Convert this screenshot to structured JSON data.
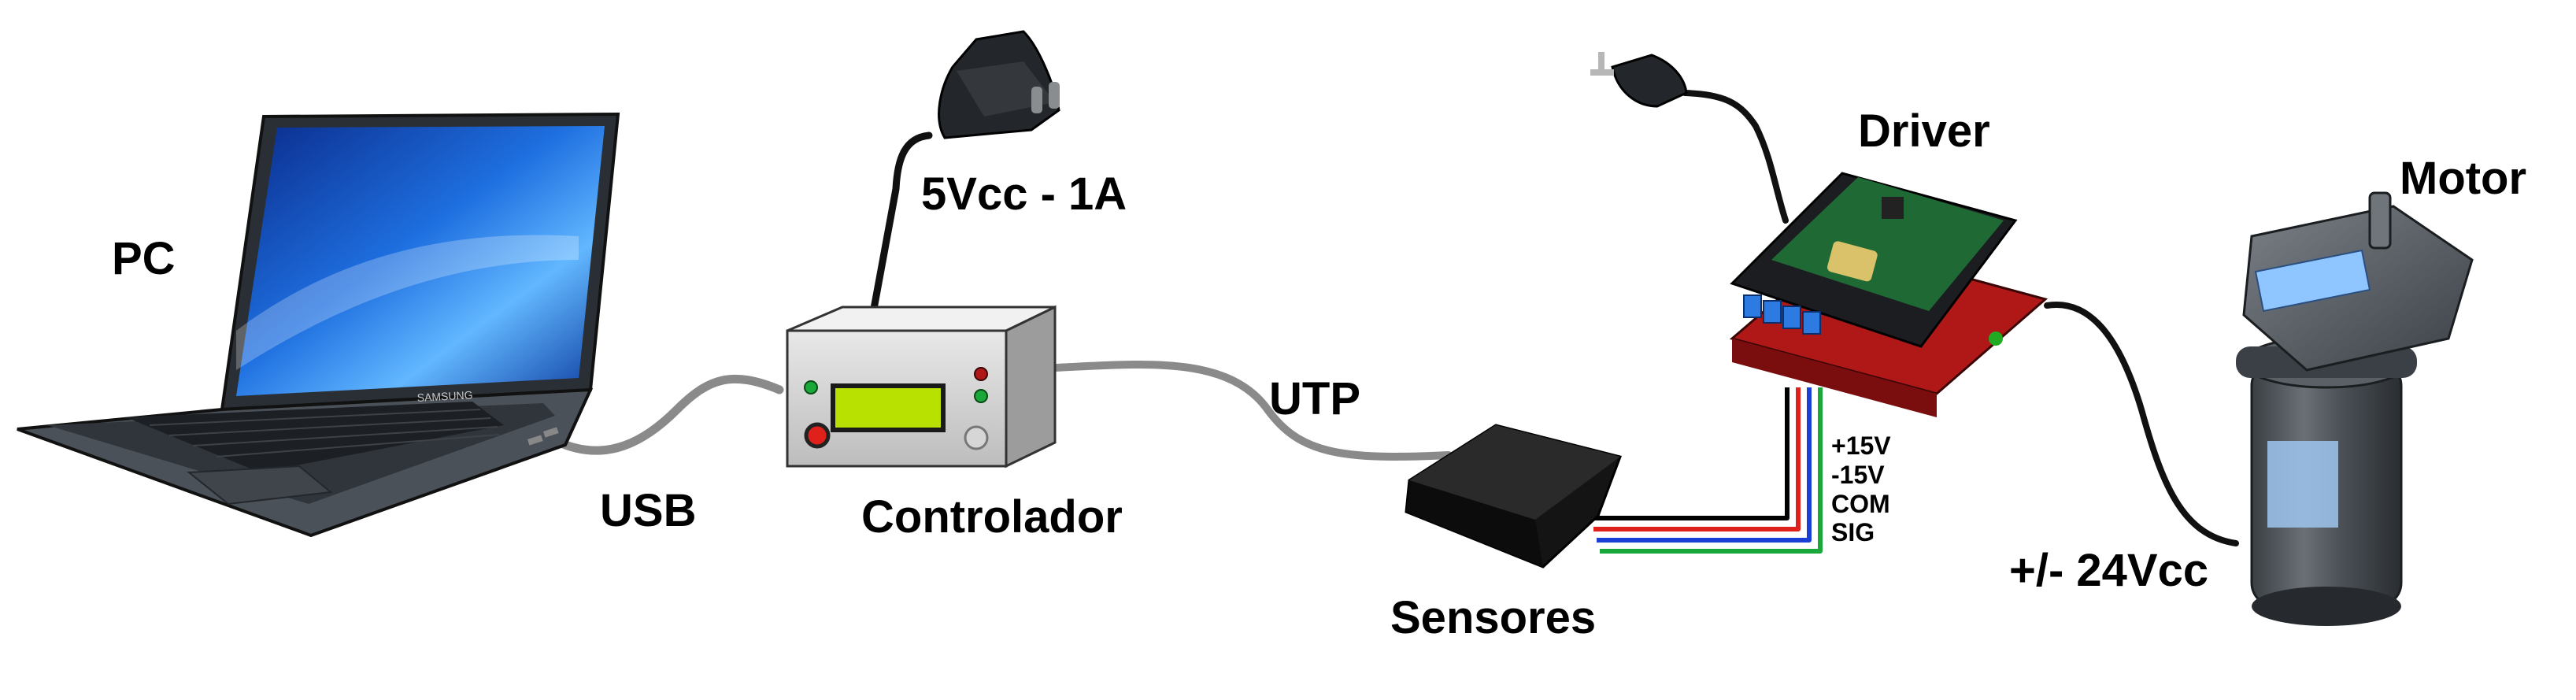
{
  "labels": {
    "pc": "PC",
    "usb": "USB",
    "controlador": "Controlador",
    "supply": "5Vcc - 1A",
    "utp": "UTP",
    "sensores": "Sensores",
    "driver": "Driver",
    "motor": "Motor",
    "motor_voltage": "+/- 24Vcc"
  },
  "sensor_signals": [
    "+15V",
    "-15V",
    "COM",
    "SIG"
  ],
  "laptop": {
    "brand": "SAMSUNG"
  },
  "colors": {
    "cable_gray": "#8a8a8a",
    "cable_black": "#111111",
    "wire_black": "#000000",
    "wire_red": "#e0201a",
    "wire_blue": "#1a3fd6",
    "wire_green": "#1aa83a",
    "lcd_green": "#b8e000",
    "driver_red": "#b01818"
  }
}
